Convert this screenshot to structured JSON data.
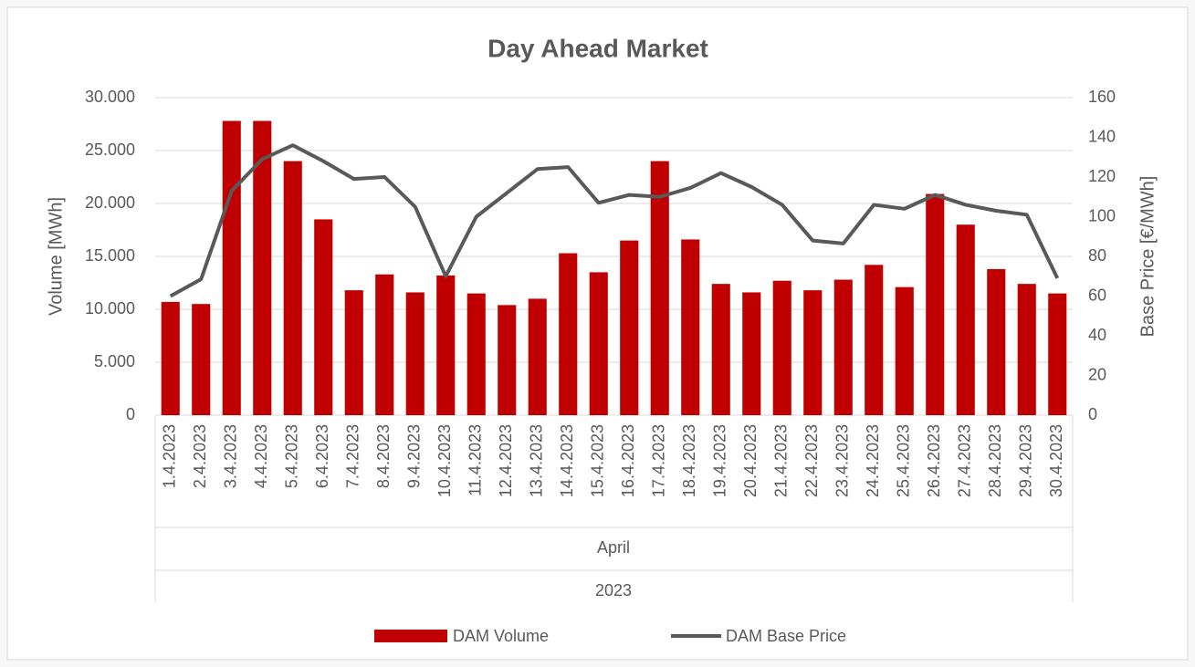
{
  "chart_data": {
    "type": "bar_line",
    "title": "Day Ahead Market",
    "categories": [
      "1.4.2023",
      "2.4.2023",
      "3.4.2023",
      "4.4.2023",
      "5.4.2023",
      "6.4.2023",
      "7.4.2023",
      "8.4.2023",
      "9.4.2023",
      "10.4.2023",
      "11.4.2023",
      "12.4.2023",
      "13.4.2023",
      "14.4.2023",
      "15.4.2023",
      "16.4.2023",
      "17.4.2023",
      "18.4.2023",
      "19.4.2023",
      "20.4.2023",
      "21.4.2023",
      "22.4.2023",
      "23.4.2023",
      "24.4.2023",
      "25.4.2023",
      "26.4.2023",
      "27.4.2023",
      "28.4.2023",
      "29.4.2023",
      "30.4.2023"
    ],
    "category_group": "April",
    "category_year": "2023",
    "ylabel": "Volume [MWh]",
    "y2label": "Base Price [€/MWh]",
    "series": [
      {
        "name": "DAM Volume",
        "type": "bar",
        "color": "#c00000",
        "values": [
          10700,
          10500,
          27800,
          27800,
          24000,
          18500,
          11800,
          13300,
          11600,
          13200,
          11500,
          10400,
          11000,
          15300,
          13500,
          16500,
          24000,
          16600,
          12400,
          11600,
          12700,
          11800,
          12800,
          14200,
          12100,
          20900,
          18000,
          13800,
          12400,
          11500
        ]
      },
      {
        "name": "DAM Base Price",
        "type": "line",
        "axis": "y2",
        "color": "#595959",
        "values": [
          60,
          68.5,
          113,
          129,
          136,
          128,
          119,
          120,
          105,
          70,
          100,
          112,
          124,
          125,
          107,
          111,
          110,
          114.5,
          122,
          115,
          106,
          88,
          86.5,
          106,
          104,
          111,
          106,
          103,
          101,
          69
        ]
      }
    ],
    "ylim": [
      0,
      30000
    ],
    "yticks": [
      0,
      {
        "value": 5000,
        "label": "5.000"
      },
      {
        "value": 10000,
        "label": "10.000"
      },
      {
        "value": 15000,
        "label": "15.000"
      },
      {
        "value": 20000,
        "label": "20.000"
      },
      {
        "value": 25000,
        "label": "25.000"
      },
      {
        "value": 30000,
        "label": "30.000"
      }
    ],
    "y2lim": [
      0,
      160
    ],
    "y2ticks": [
      0,
      20,
      40,
      60,
      80,
      100,
      120,
      140,
      160
    ],
    "grid": true
  }
}
